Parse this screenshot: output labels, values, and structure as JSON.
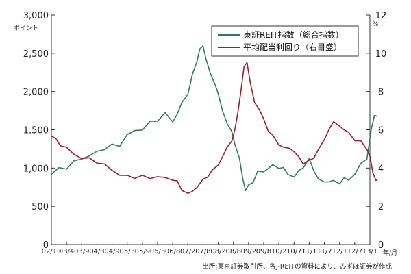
{
  "chart_data": {
    "type": "line",
    "title": "",
    "xlabel": "",
    "x_unit": "年/月",
    "categories": [
      "02/10",
      "03/4",
      "03/9",
      "04/3",
      "04/9",
      "05/3",
      "05/9",
      "06/3",
      "06/8",
      "07/2",
      "07/8",
      "08/2",
      "08/8",
      "09/2",
      "09/8",
      "10/2",
      "10/7",
      "11/1",
      "11/7",
      "12/1",
      "12/7",
      "13/1"
    ],
    "y_left": {
      "label": "",
      "unit": "ポイント",
      "range": [
        0,
        3000
      ],
      "ticks": [
        "0",
        "500",
        "1,000",
        "1,500",
        "2,000",
        "2,500",
        "3,000"
      ]
    },
    "y_right": {
      "label": "",
      "unit": "%",
      "range": [
        0,
        12
      ],
      "ticks": [
        "0",
        "2",
        "4",
        "6",
        "8",
        "10",
        "12"
      ]
    },
    "grid": false,
    "legend": "top-right",
    "series": [
      {
        "name": "東証REIT指数（総合指数）",
        "axis": "left",
        "color": "#2e7d57",
        "points": [
          [
            0,
            920
          ],
          [
            0.5,
            980
          ],
          [
            1,
            1000
          ],
          [
            1.5,
            1080
          ],
          [
            2,
            1150
          ],
          [
            2.5,
            1150
          ],
          [
            3,
            1200
          ],
          [
            3.5,
            1250
          ],
          [
            4,
            1300
          ],
          [
            4.5,
            1320
          ],
          [
            5,
            1420
          ],
          [
            5.5,
            1480
          ],
          [
            6,
            1500
          ],
          [
            6.5,
            1600
          ],
          [
            7,
            1650
          ],
          [
            7.5,
            1700
          ],
          [
            8,
            1600
          ],
          [
            8.3,
            1700
          ],
          [
            8.6,
            1850
          ],
          [
            9,
            2000
          ],
          [
            9.3,
            2200
          ],
          [
            9.6,
            2400
          ],
          [
            9.8,
            2550
          ],
          [
            10,
            2600
          ],
          [
            10.2,
            2450
          ],
          [
            10.5,
            2200
          ],
          [
            10.8,
            2100
          ],
          [
            11,
            1950
          ],
          [
            11.3,
            1750
          ],
          [
            11.6,
            1600
          ],
          [
            11.9,
            1450
          ],
          [
            12.1,
            1320
          ],
          [
            12.4,
            1100
          ],
          [
            12.6,
            900
          ],
          [
            12.8,
            720
          ],
          [
            13,
            760
          ],
          [
            13.3,
            820
          ],
          [
            13.6,
            930
          ],
          [
            14,
            980
          ],
          [
            14.3,
            1000
          ],
          [
            14.6,
            1030
          ],
          [
            15,
            1000
          ],
          [
            15.3,
            980
          ],
          [
            15.6,
            950
          ],
          [
            16,
            880
          ],
          [
            16.3,
            960
          ],
          [
            16.6,
            1000
          ],
          [
            17,
            1100
          ],
          [
            17.3,
            1000
          ],
          [
            17.6,
            850
          ],
          [
            18,
            820
          ],
          [
            18.3,
            810
          ],
          [
            18.6,
            820
          ],
          [
            19,
            830
          ],
          [
            19.3,
            860
          ],
          [
            19.6,
            850
          ],
          [
            20,
            900
          ],
          [
            20.4,
            1050
          ],
          [
            20.8,
            1150
          ],
          [
            21.1,
            1500
          ],
          [
            21.3,
            1700
          ],
          [
            21.5,
            1650
          ]
        ]
      },
      {
        "name": "平均配当利回り（右目盛）",
        "axis": "right",
        "color": "#9b1c31",
        "points": [
          [
            0,
            5.8
          ],
          [
            0.3,
            5.5
          ],
          [
            0.6,
            5.2
          ],
          [
            1,
            5.0
          ],
          [
            1.5,
            4.7
          ],
          [
            2,
            4.6
          ],
          [
            2.5,
            4.5
          ],
          [
            3,
            4.3
          ],
          [
            3.5,
            4.1
          ],
          [
            4,
            3.9
          ],
          [
            4.5,
            3.7
          ],
          [
            5,
            3.6
          ],
          [
            5.5,
            3.5
          ],
          [
            6,
            3.5
          ],
          [
            6.5,
            3.5
          ],
          [
            7,
            3.6
          ],
          [
            7.5,
            3.5
          ],
          [
            8,
            3.4
          ],
          [
            8.3,
            3.2
          ],
          [
            8.6,
            2.9
          ],
          [
            9,
            2.7
          ],
          [
            9.3,
            2.8
          ],
          [
            9.6,
            3.0
          ],
          [
            10,
            3.3
          ],
          [
            10.3,
            3.6
          ],
          [
            10.6,
            3.9
          ],
          [
            11,
            4.2
          ],
          [
            11.3,
            4.6
          ],
          [
            11.6,
            5.0
          ],
          [
            11.9,
            5.5
          ],
          [
            12.1,
            6.0
          ],
          [
            12.3,
            7.0
          ],
          [
            12.5,
            8.0
          ],
          [
            12.7,
            9.2
          ],
          [
            12.9,
            9.6
          ],
          [
            13.1,
            8.5
          ],
          [
            13.4,
            7.5
          ],
          [
            13.7,
            7.0
          ],
          [
            14,
            6.5
          ],
          [
            14.3,
            6.0
          ],
          [
            14.6,
            5.7
          ],
          [
            15,
            5.3
          ],
          [
            15.3,
            5.0
          ],
          [
            15.7,
            5.0
          ],
          [
            16,
            4.9
          ],
          [
            16.3,
            4.6
          ],
          [
            16.6,
            4.3
          ],
          [
            17,
            4.3
          ],
          [
            17.3,
            4.5
          ],
          [
            17.6,
            5.0
          ],
          [
            18,
            5.5
          ],
          [
            18.3,
            6.1
          ],
          [
            18.6,
            6.3
          ],
          [
            19,
            6.2
          ],
          [
            19.3,
            6.0
          ],
          [
            19.6,
            5.9
          ],
          [
            20,
            5.5
          ],
          [
            20.4,
            5.3
          ],
          [
            20.8,
            5.0
          ],
          [
            21,
            4.6
          ],
          [
            21.2,
            3.8
          ],
          [
            21.4,
            3.4
          ],
          [
            21.5,
            3.3
          ]
        ]
      }
    ]
  },
  "source_note": "出所:東京証券取引所、各J-REITの資料により、みずほ証券が作成",
  "colors": {
    "reit_line": "#2e7d57",
    "yield_line": "#9b1c31",
    "axis": "#333333"
  }
}
